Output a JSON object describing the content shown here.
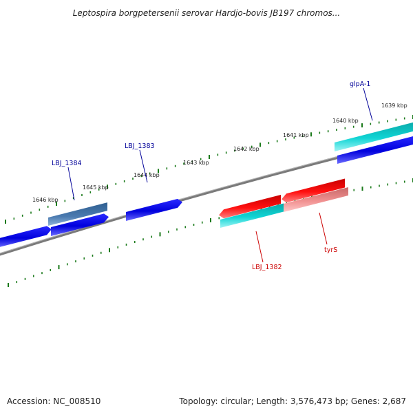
{
  "title": "Leptospira borgpetersenii serovar Hardjo-bovis JB197 chromos...",
  "footer": {
    "accession": "Accession: NC_008510",
    "summary": "Topology: circular; Length: 3,576,473 bp; Genes: 2,687"
  },
  "colors": {
    "backbone": "#808080",
    "tick": "#1a7a1a",
    "cds_blue": "#1010e0",
    "cds_steel": "#4a7ab0",
    "cds_cyan": "#10c8c8",
    "cds_red": "#ee1010",
    "cds_pink": "#ee8a8a",
    "label_blue": "#000099",
    "label_red": "#cc0000"
  },
  "ticks": [
    {
      "label": "1646 kbp"
    },
    {
      "label": "1645 kbp"
    },
    {
      "label": "1644 kbp"
    },
    {
      "label": "1643 kbp"
    },
    {
      "label": "1642 kbp"
    },
    {
      "label": "1641 kbp"
    },
    {
      "label": "1640 kbp"
    },
    {
      "label": "1639 kbp"
    }
  ],
  "gene_labels": [
    {
      "name": "LBJ_1384",
      "color": "label_blue"
    },
    {
      "name": "LBJ_1383",
      "color": "label_blue"
    },
    {
      "name": "glpA-1",
      "color": "label_blue"
    },
    {
      "name": "LBJ_1382",
      "color": "label_red"
    },
    {
      "name": "tyrS",
      "color": "label_red"
    }
  ]
}
